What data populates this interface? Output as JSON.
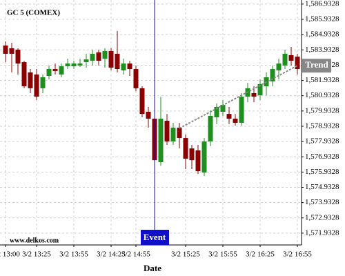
{
  "chart_data": {
    "type": "candlestick",
    "title": "GC 5 (COMEX)",
    "watermark": "www.delkos.com",
    "x_label": "Date",
    "categories": [
      "3/2 13:00",
      null,
      null,
      null,
      null,
      "3/2 13:25",
      null,
      null,
      null,
      null,
      null,
      "3/2 13:55",
      null,
      null,
      null,
      null,
      null,
      "3/2 14:25",
      null,
      null,
      null,
      "3/2 14:55",
      null,
      null,
      null,
      null,
      null,
      null,
      null,
      "3/2 15:25",
      null,
      null,
      null,
      null,
      null,
      "3/2 15:55",
      null,
      null,
      null,
      null,
      null,
      "3/2 16:25",
      null,
      null,
      null,
      null,
      null,
      "3/2 16:55"
    ],
    "open": [
      1584.22,
      1584.04,
      1583.95,
      1583.13,
      1582.46,
      1582.32,
      1581.42,
      1582.23,
      1582.68,
      1582.32,
      1582.86,
      1582.86,
      1582.91,
      1583.13,
      1583.22,
      1583.77,
      1583.36,
      1583.86,
      1583.68,
      1582.59,
      1583.04,
      1582.68,
      1581.42,
      1579.88,
      1579.43,
      1576.58,
      1579.29,
      1577.94,
      1578.84,
      1578.16,
      1577.48,
      1577.35,
      1575.9,
      1577.94,
      1579.52,
      1579.88,
      1579.74,
      1579.43,
      1579.16,
      1580.87,
      1581.1,
      1580.96,
      1581.55,
      1581.87,
      1582.59,
      1582.91,
      1583.59,
      1583.49
    ],
    "high": [
      1584.49,
      1584.4,
      1584.04,
      1583.22,
      1582.68,
      1582.68,
      1582.32,
      1582.91,
      1583.04,
      1583.04,
      1583.36,
      1583.22,
      1583.36,
      1583.68,
      1583.95,
      1583.95,
      1584.04,
      1584.04,
      1585.17,
      1583.36,
      1583.22,
      1582.91,
      1581.55,
      1580.2,
      1579.74,
      1580.87,
      1579.74,
      1579.16,
      1579.16,
      1578.39,
      1577.71,
      1577.71,
      1578.16,
      1579.97,
      1580.42,
      1580.65,
      1580.2,
      1579.74,
      1581.1,
      1581.78,
      1581.55,
      1582.0,
      1582.46,
      1582.91,
      1583.36,
      1583.95,
      1584.13,
      1583.68
    ],
    "low": [
      1583.13,
      1582.46,
      1582.32,
      1581.42,
      1581.1,
      1580.65,
      1581.1,
      1582.0,
      1582.32,
      1582.14,
      1582.68,
      1582.68,
      1582.82,
      1582.77,
      1582.91,
      1582.91,
      1582.77,
      1582.59,
      1582.46,
      1582.32,
      1582.23,
      1581.23,
      1579.52,
      1578.84,
      1576.35,
      1576.35,
      1577.71,
      1577.71,
      1577.48,
      1576.13,
      1576.13,
      1575.81,
      1575.68,
      1577.62,
      1579.07,
      1579.61,
      1579.07,
      1578.97,
      1578.97,
      1580.51,
      1580.51,
      1580.65,
      1580.96,
      1581.55,
      1582.0,
      1582.68,
      1582.91,
      1582.32
    ],
    "close": [
      1583.68,
      1583.68,
      1583.04,
      1581.55,
      1581.42,
      1580.87,
      1582.14,
      1582.68,
      1582.55,
      1582.86,
      1583.04,
      1583.04,
      1583.04,
      1583.31,
      1583.68,
      1583.22,
      1583.86,
      1582.77,
      1582.68,
      1583.04,
      1582.68,
      1581.42,
      1579.74,
      1579.43,
      1576.71,
      1579.43,
      1577.94,
      1578.84,
      1578.16,
      1576.81,
      1576.71,
      1575.99,
      1577.94,
      1579.61,
      1580.2,
      1580.33,
      1579.43,
      1579.16,
      1580.87,
      1581.42,
      1580.87,
      1581.69,
      1582.14,
      1582.68,
      1583.04,
      1583.68,
      1583.22,
      1582.68
    ],
    "up_color": "#1f8f1f",
    "down_color": "#8b0000",
    "ylim": [
      1571.16,
      1587.2
    ],
    "yticks": [
      {
        "value": 1586.9328,
        "label": "1,586.9328"
      },
      {
        "value": 1585.9328,
        "label": "1,585.9328"
      },
      {
        "value": 1584.9328,
        "label": "1,584.9328"
      },
      {
        "value": 1583.9328,
        "label": "1,583.9328"
      },
      {
        "value": 1582.9328,
        "label": "1,582.9328"
      },
      {
        "value": 1581.9328,
        "label": "1,581.9328"
      },
      {
        "value": 1580.9328,
        "label": "1,580.9328"
      },
      {
        "value": 1579.9328,
        "label": "1,579.9328"
      },
      {
        "value": 1578.9328,
        "label": "1,578.9328"
      },
      {
        "value": 1577.9328,
        "label": "1,577.9328"
      },
      {
        "value": 1576.9328,
        "label": "1,576.9328"
      },
      {
        "value": 1575.9328,
        "label": "1,575.9328"
      },
      {
        "value": 1574.9328,
        "label": "1,574.9328"
      },
      {
        "value": 1573.9328,
        "label": "1,573.9328"
      },
      {
        "value": 1572.9328,
        "label": "1,572.9328"
      },
      {
        "value": 1571.9328,
        "label": "1,571.9328"
      }
    ],
    "grid": true,
    "event": {
      "label": "Event",
      "index": 24,
      "color": "#1010c8"
    },
    "trend": {
      "label": "Trend",
      "x": [
        28,
        47
      ],
      "y": [
        1578.8,
        1582.9
      ],
      "color": "#888888"
    }
  }
}
